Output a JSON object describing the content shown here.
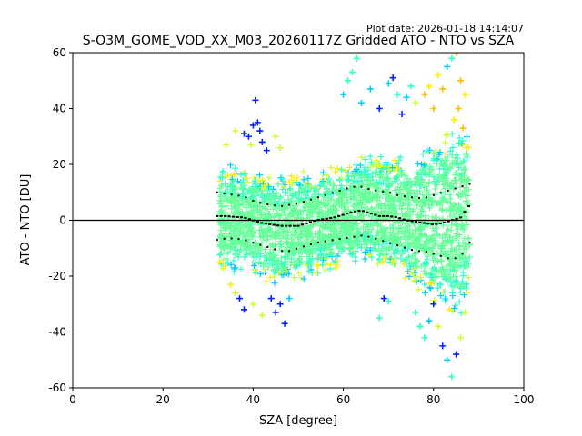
{
  "chart_data": {
    "type": "scatter",
    "title": "S-O3M_GOME_VOD_XX_M03_20260117Z Gridded ATO - NTO vs SZA",
    "plot_date": "Plot date: 2026-01-18 14:14:07",
    "xlabel": "SZA [degree]",
    "ylabel": "ATO - NTO [DU]",
    "xlim": [
      0,
      100
    ],
    "ylim": [
      -60,
      60
    ],
    "x_ticks": [
      0,
      20,
      40,
      60,
      80,
      100
    ],
    "y_ticks": [
      -60,
      -40,
      -20,
      0,
      20,
      40,
      60
    ],
    "reference_line": {
      "y": 0,
      "color": "#000000"
    },
    "marker": "+",
    "color_scale": [
      "#0022ff",
      "#00ccff",
      "#33ffcc",
      "#66ff99",
      "#ccff33",
      "#ffee00",
      "#ffbb00"
    ],
    "mean_line": {
      "x": [
        32,
        34,
        36,
        38,
        40,
        42,
        44,
        46,
        48,
        50,
        52,
        54,
        56,
        58,
        60,
        62,
        64,
        66,
        68,
        70,
        72,
        74,
        76,
        78,
        80,
        82,
        84,
        86,
        88
      ],
      "y": [
        1.5,
        1.5,
        1.2,
        1.0,
        0,
        -1.0,
        -1.5,
        -2.0,
        -2.0,
        -2.0,
        -1.0,
        0,
        0.5,
        1.0,
        2.0,
        3.0,
        3.5,
        2.5,
        1.5,
        1.5,
        1.0,
        0,
        -0.5,
        -1.0,
        -1.5,
        -1.0,
        0,
        1.0,
        5.5
      ]
    },
    "upper_std": {
      "x": [
        32,
        34,
        36,
        38,
        40,
        42,
        44,
        46,
        48,
        50,
        52,
        54,
        56,
        58,
        60,
        62,
        64,
        66,
        68,
        70,
        72,
        74,
        76,
        78,
        80,
        82,
        84,
        86,
        88
      ],
      "y": [
        10,
        9.5,
        9,
        8.5,
        7,
        6,
        5.5,
        5,
        5.5,
        6,
        7,
        8,
        9,
        10,
        11,
        12,
        12,
        11,
        10.5,
        10,
        9,
        8.5,
        8,
        8,
        9,
        10,
        11,
        12,
        13
      ]
    },
    "lower_std": {
      "x": [
        32,
        34,
        36,
        38,
        40,
        42,
        44,
        46,
        48,
        50,
        52,
        54,
        56,
        58,
        60,
        62,
        64,
        66,
        68,
        70,
        72,
        74,
        76,
        78,
        80,
        82,
        84,
        86,
        88
      ],
      "y": [
        -7,
        -6.5,
        -6.5,
        -7,
        -8,
        -9,
        -10,
        -11,
        -11,
        -10,
        -9,
        -8,
        -7.5,
        -7,
        -6.5,
        -6,
        -5.5,
        -6,
        -7,
        -8,
        -9,
        -10,
        -11,
        -11,
        -12,
        -13,
        -14,
        -13,
        -8
      ]
    },
    "envelope": {
      "x": [
        33,
        35,
        37,
        39,
        41,
        43,
        45,
        47,
        49,
        51,
        53,
        55,
        57,
        59,
        61,
        63,
        65,
        67,
        69,
        71,
        73,
        75,
        77,
        79,
        81,
        83,
        85,
        87,
        88
      ],
      "upper": [
        20,
        20,
        19,
        19,
        18,
        17,
        17,
        17,
        17,
        18,
        18,
        19,
        20,
        20,
        21,
        23,
        25,
        25,
        25,
        24,
        24,
        25,
        27,
        29,
        31,
        34,
        38,
        35,
        30
      ],
      "lower": [
        -20,
        -20,
        -20,
        -21,
        -22,
        -24,
        -25,
        -24,
        -22,
        -22,
        -21,
        -20,
        -19,
        -18,
        -17,
        -16,
        -16,
        -17,
        -19,
        -21,
        -22,
        -24,
        -27,
        -30,
        -33,
        -35,
        -38,
        -34,
        -25
      ]
    },
    "outliers": [
      {
        "x": 40.5,
        "y": 43,
        "c": 0
      },
      {
        "x": 41,
        "y": 35,
        "c": 0
      },
      {
        "x": 40,
        "y": 34,
        "c": 0
      },
      {
        "x": 39,
        "y": 30,
        "c": 0
      },
      {
        "x": 42,
        "y": 28,
        "c": 0
      },
      {
        "x": 38,
        "y": 31,
        "c": 0
      },
      {
        "x": 43,
        "y": 25,
        "c": 0
      },
      {
        "x": 41.5,
        "y": 32,
        "c": 0
      },
      {
        "x": 39.5,
        "y": 27,
        "c": 4
      },
      {
        "x": 45,
        "y": 30,
        "c": 4
      },
      {
        "x": 46,
        "y": 26,
        "c": 4
      },
      {
        "x": 36,
        "y": 32,
        "c": 4
      },
      {
        "x": 34,
        "y": 27,
        "c": 4
      },
      {
        "x": 60,
        "y": 45,
        "c": 1
      },
      {
        "x": 61,
        "y": 50,
        "c": 2
      },
      {
        "x": 62,
        "y": 53,
        "c": 2
      },
      {
        "x": 63,
        "y": 58,
        "c": 2
      },
      {
        "x": 64,
        "y": 42,
        "c": 1
      },
      {
        "x": 66,
        "y": 47,
        "c": 1
      },
      {
        "x": 68,
        "y": 40,
        "c": 0
      },
      {
        "x": 70,
        "y": 49,
        "c": 1
      },
      {
        "x": 71,
        "y": 51,
        "c": 0
      },
      {
        "x": 72,
        "y": 45,
        "c": 2
      },
      {
        "x": 73,
        "y": 38,
        "c": 0
      },
      {
        "x": 74,
        "y": 44,
        "c": 1
      },
      {
        "x": 75,
        "y": 48,
        "c": 2
      },
      {
        "x": 76,
        "y": 42,
        "c": 4
      },
      {
        "x": 78,
        "y": 45,
        "c": 6
      },
      {
        "x": 79,
        "y": 48,
        "c": 5
      },
      {
        "x": 80,
        "y": 40,
        "c": 6
      },
      {
        "x": 81,
        "y": 52,
        "c": 5
      },
      {
        "x": 82,
        "y": 47,
        "c": 6
      },
      {
        "x": 83,
        "y": 55,
        "c": 1
      },
      {
        "x": 84,
        "y": 58,
        "c": 2
      },
      {
        "x": 85,
        "y": 60,
        "c": 6
      },
      {
        "x": 86,
        "y": 50,
        "c": 6
      },
      {
        "x": 87,
        "y": 45,
        "c": 5
      },
      {
        "x": 85.5,
        "y": 40,
        "c": 6
      },
      {
        "x": 84.5,
        "y": 36,
        "c": 5
      },
      {
        "x": 86.5,
        "y": 33,
        "c": 6
      },
      {
        "x": 44,
        "y": -28,
        "c": 0
      },
      {
        "x": 45,
        "y": -33,
        "c": 0
      },
      {
        "x": 46,
        "y": -30,
        "c": 0
      },
      {
        "x": 47,
        "y": -37,
        "c": 0
      },
      {
        "x": 48,
        "y": -28,
        "c": 1
      },
      {
        "x": 42,
        "y": -34,
        "c": 4
      },
      {
        "x": 40,
        "y": -30,
        "c": 4
      },
      {
        "x": 38,
        "y": -32,
        "c": 0
      },
      {
        "x": 37,
        "y": -28,
        "c": 0
      },
      {
        "x": 35,
        "y": -23,
        "c": 5
      },
      {
        "x": 36,
        "y": -26,
        "c": 4
      },
      {
        "x": 69,
        "y": -28,
        "c": 0
      },
      {
        "x": 70,
        "y": -29,
        "c": 2
      },
      {
        "x": 68,
        "y": -35,
        "c": 2
      },
      {
        "x": 76,
        "y": -33,
        "c": 2
      },
      {
        "x": 77,
        "y": -38,
        "c": 2
      },
      {
        "x": 78,
        "y": -42,
        "c": 2
      },
      {
        "x": 79,
        "y": -36,
        "c": 1
      },
      {
        "x": 80,
        "y": -30,
        "c": 0
      },
      {
        "x": 82,
        "y": -45,
        "c": 0
      },
      {
        "x": 83,
        "y": -50,
        "c": 1
      },
      {
        "x": 84,
        "y": -56,
        "c": 2
      },
      {
        "x": 85,
        "y": -48,
        "c": 0
      },
      {
        "x": 86,
        "y": -42,
        "c": 4
      },
      {
        "x": 87,
        "y": -33,
        "c": 4
      },
      {
        "x": 81,
        "y": -38,
        "c": 4
      },
      {
        "x": 83.5,
        "y": -32,
        "c": 5
      }
    ]
  }
}
